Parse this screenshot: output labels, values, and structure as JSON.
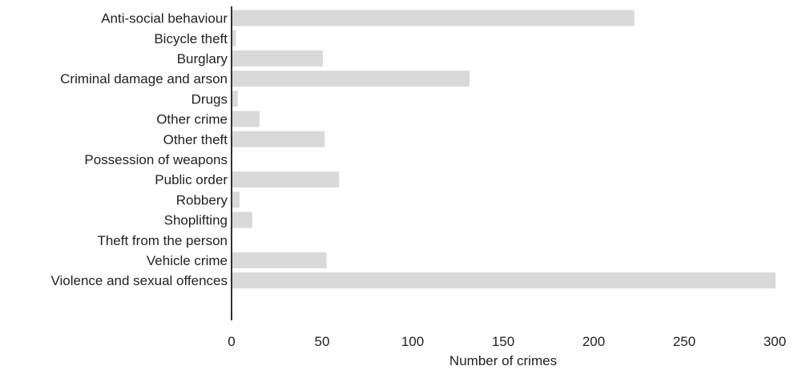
{
  "chart_data": {
    "type": "bar",
    "orientation": "horizontal",
    "categories": [
      "Anti-social behaviour",
      "Bicycle theft",
      "Burglary",
      "Criminal damage and arson",
      "Drugs",
      "Other crime",
      "Other theft",
      "Possession of weapons",
      "Public order",
      "Robbery",
      "Shoplifting",
      "Theft from the person",
      "Vehicle crime",
      "Violence and sexual offences"
    ],
    "values": [
      222,
      2,
      50,
      131,
      3,
      15,
      51,
      0,
      59,
      4,
      11,
      0,
      52,
      300
    ],
    "xlabel": "Number of crimes",
    "ylabel": "",
    "xlim": [
      0,
      300
    ],
    "xticks": [
      0,
      50,
      100,
      150,
      200,
      250,
      300
    ],
    "grid": false,
    "bar_color": "#d9d9d9"
  }
}
